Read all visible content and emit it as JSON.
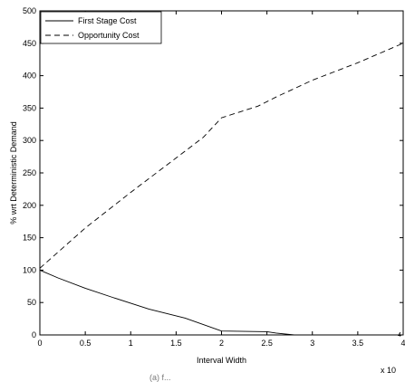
{
  "chart_data": {
    "type": "line",
    "xlabel": "Interval Width",
    "ylabel": "% wrt Deterministic Demand",
    "xlim": [
      0,
      4
    ],
    "ylim": [
      0,
      500
    ],
    "x_multiplier": "x 10",
    "x_exponent": "4",
    "x_ticks": [
      0,
      0.5,
      1,
      1.5,
      2,
      2.5,
      3,
      3.5,
      4
    ],
    "x_tick_labels": [
      "0",
      "0.5",
      "1",
      "1.5",
      "2",
      "2.5",
      "3",
      "3.5",
      "4"
    ],
    "y_ticks": [
      0,
      50,
      100,
      150,
      200,
      250,
      300,
      350,
      400,
      450,
      500
    ],
    "y_tick_labels": [
      "0",
      "50",
      "100",
      "150",
      "200",
      "250",
      "300",
      "350",
      "400",
      "450",
      "500"
    ],
    "grid": false,
    "legend_position": "top-left",
    "series": [
      {
        "name": "First Stage Cost",
        "style": "solid",
        "x": [
          0,
          0.2,
          0.5,
          0.8,
          1.2,
          1.6,
          2.0,
          2.5,
          2.6,
          2.8,
          3.0,
          3.5,
          4.0
        ],
        "y": [
          100,
          88,
          72,
          58,
          40,
          26,
          6,
          5,
          3,
          0,
          0,
          0,
          0
        ]
      },
      {
        "name": "Opportunity Cost",
        "style": "dashed",
        "x": [
          0,
          0.5,
          1.0,
          1.5,
          1.8,
          2.0,
          2.4,
          2.6,
          3.0,
          3.5,
          4.0
        ],
        "y": [
          103,
          165,
          220,
          273,
          305,
          335,
          353,
          367,
          393,
          420,
          450
        ]
      }
    ]
  },
  "caption": "(a) f..."
}
